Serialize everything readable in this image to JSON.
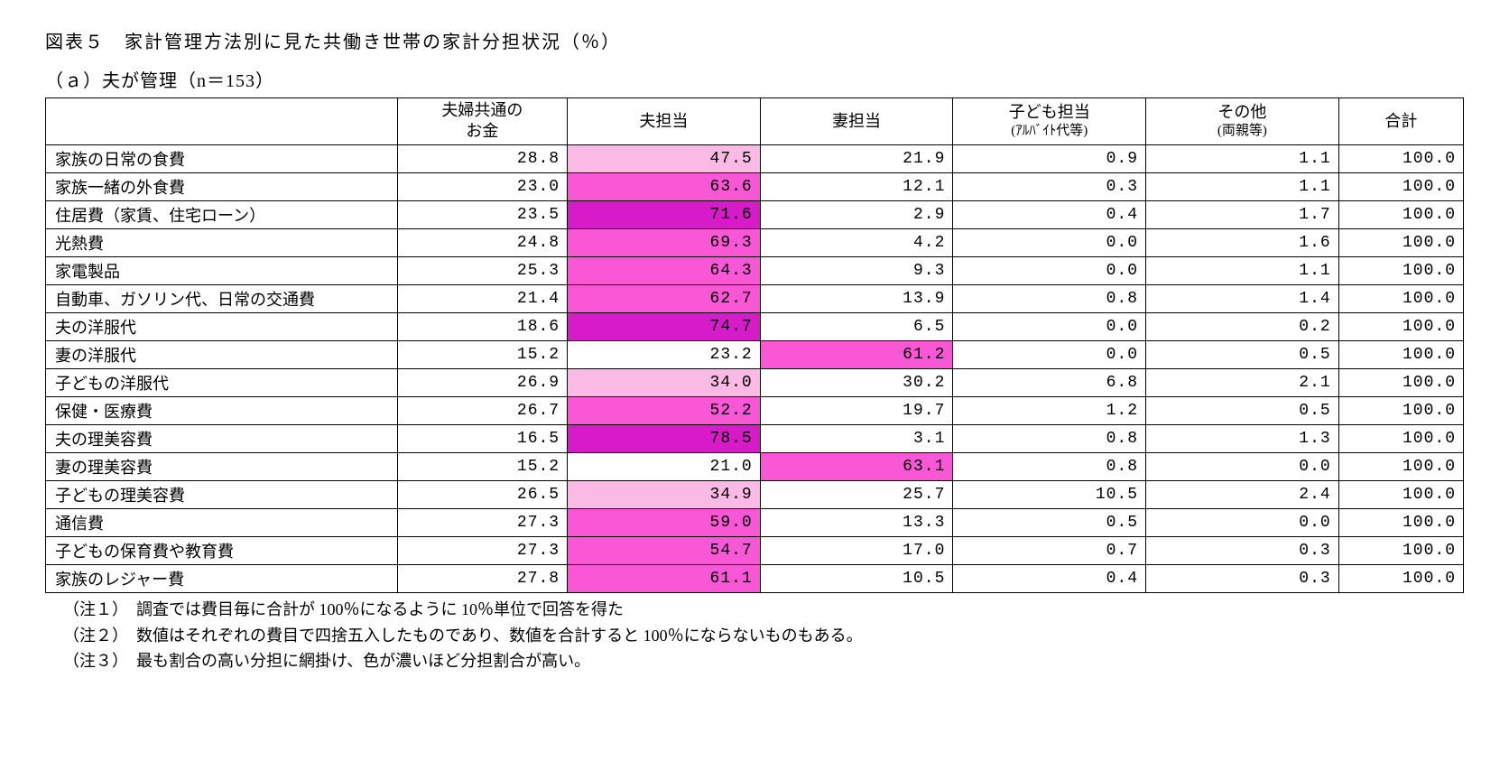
{
  "title": "図表５　家計管理方法別に見た共働き世帯の家計分担状況（％）",
  "subtitle": "（ａ）夫が管理（n＝153）",
  "table": {
    "columns": [
      "",
      "夫婦共通の\nお金",
      "夫担当",
      "妻担当",
      "子ども担当\n(ｱﾙﾊﾞｲﾄ代等)",
      "その他\n(両親等)",
      "合計"
    ],
    "shading_colors": {
      "none": "#ffffff",
      "light": "#fbb9e6",
      "mid": "#f957d6",
      "dark": "#d81bc8"
    },
    "rows": [
      {
        "label": "家族の日常の食費",
        "values": [
          "28.8",
          "47.5",
          "21.9",
          "0.9",
          "1.1",
          "100.0"
        ],
        "shade": [
          "none",
          "light",
          "none",
          "none",
          "none",
          "none"
        ]
      },
      {
        "label": "家族一緒の外食費",
        "values": [
          "23.0",
          "63.6",
          "12.1",
          "0.3",
          "1.1",
          "100.0"
        ],
        "shade": [
          "none",
          "mid",
          "none",
          "none",
          "none",
          "none"
        ]
      },
      {
        "label": "住居費（家賃、住宅ローン）",
        "values": [
          "23.5",
          "71.6",
          "2.9",
          "0.4",
          "1.7",
          "100.0"
        ],
        "shade": [
          "none",
          "dark",
          "none",
          "none",
          "none",
          "none"
        ]
      },
      {
        "label": "光熱費",
        "values": [
          "24.8",
          "69.3",
          "4.2",
          "0.0",
          "1.6",
          "100.0"
        ],
        "shade": [
          "none",
          "mid",
          "none",
          "none",
          "none",
          "none"
        ]
      },
      {
        "label": "家電製品",
        "values": [
          "25.3",
          "64.3",
          "9.3",
          "0.0",
          "1.1",
          "100.0"
        ],
        "shade": [
          "none",
          "mid",
          "none",
          "none",
          "none",
          "none"
        ]
      },
      {
        "label": "自動車、ガソリン代、日常の交通費",
        "values": [
          "21.4",
          "62.7",
          "13.9",
          "0.8",
          "1.4",
          "100.0"
        ],
        "shade": [
          "none",
          "mid",
          "none",
          "none",
          "none",
          "none"
        ]
      },
      {
        "label": "夫の洋服代",
        "values": [
          "18.6",
          "74.7",
          "6.5",
          "0.0",
          "0.2",
          "100.0"
        ],
        "shade": [
          "none",
          "dark",
          "none",
          "none",
          "none",
          "none"
        ]
      },
      {
        "label": "妻の洋服代",
        "values": [
          "15.2",
          "23.2",
          "61.2",
          "0.0",
          "0.5",
          "100.0"
        ],
        "shade": [
          "none",
          "none",
          "mid",
          "none",
          "none",
          "none"
        ]
      },
      {
        "label": "子どもの洋服代",
        "values": [
          "26.9",
          "34.0",
          "30.2",
          "6.8",
          "2.1",
          "100.0"
        ],
        "shade": [
          "none",
          "light",
          "none",
          "none",
          "none",
          "none"
        ]
      },
      {
        "label": "保健・医療費",
        "values": [
          "26.7",
          "52.2",
          "19.7",
          "1.2",
          "0.5",
          "100.0"
        ],
        "shade": [
          "none",
          "mid",
          "none",
          "none",
          "none",
          "none"
        ]
      },
      {
        "label": "夫の理美容費",
        "values": [
          "16.5",
          "78.5",
          "3.1",
          "0.8",
          "1.3",
          "100.0"
        ],
        "shade": [
          "none",
          "dark",
          "none",
          "none",
          "none",
          "none"
        ]
      },
      {
        "label": "妻の理美容費",
        "values": [
          "15.2",
          "21.0",
          "63.1",
          "0.8",
          "0.0",
          "100.0"
        ],
        "shade": [
          "none",
          "none",
          "mid",
          "none",
          "none",
          "none"
        ]
      },
      {
        "label": "子どもの理美容費",
        "values": [
          "26.5",
          "34.9",
          "25.7",
          "10.5",
          "2.4",
          "100.0"
        ],
        "shade": [
          "none",
          "light",
          "none",
          "none",
          "none",
          "none"
        ]
      },
      {
        "label": "通信費",
        "values": [
          "27.3",
          "59.0",
          "13.3",
          "0.5",
          "0.0",
          "100.0"
        ],
        "shade": [
          "none",
          "mid",
          "none",
          "none",
          "none",
          "none"
        ]
      },
      {
        "label": "子どもの保育費や教育費",
        "values": [
          "27.3",
          "54.7",
          "17.0",
          "0.7",
          "0.3",
          "100.0"
        ],
        "shade": [
          "none",
          "mid",
          "none",
          "none",
          "none",
          "none"
        ]
      },
      {
        "label": "家族のレジャー費",
        "values": [
          "27.8",
          "61.1",
          "10.5",
          "0.4",
          "0.3",
          "100.0"
        ],
        "shade": [
          "none",
          "mid",
          "none",
          "none",
          "none",
          "none"
        ]
      }
    ]
  },
  "notes": [
    "（注１）　調査では費目毎に合計が 100％になるように 10％単位で回答を得た",
    "（注２）　数値はそれぞれの費目で四捨五入したものであり、数値を合計すると 100％にならないものもある。",
    "（注３）　最も割合の高い分担に網掛け、色が濃いほど分担割合が高い。"
  ]
}
